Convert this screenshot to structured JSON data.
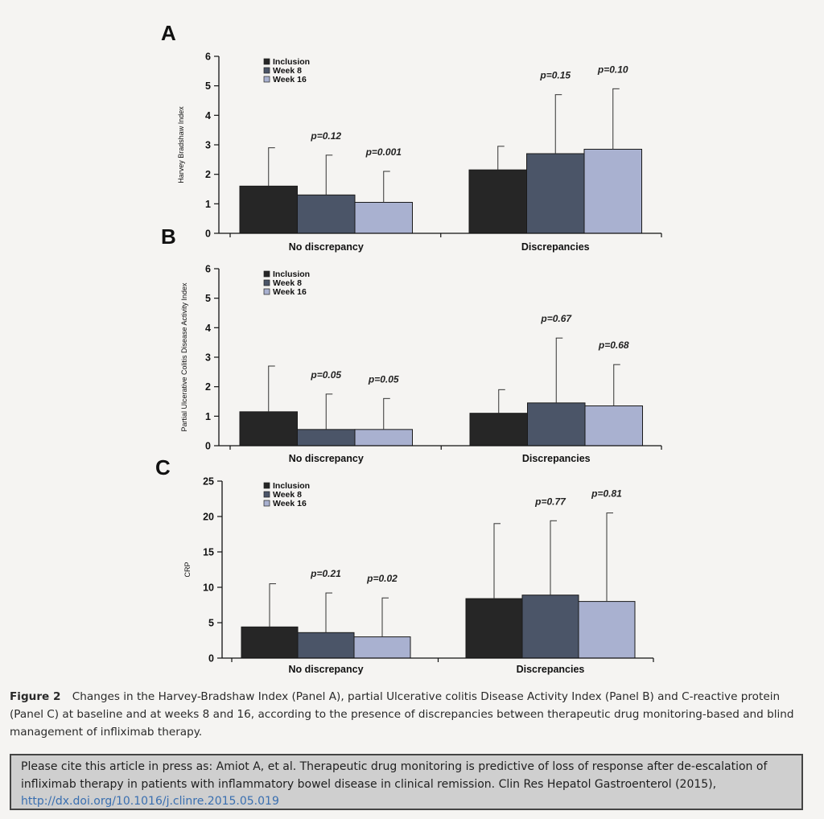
{
  "chart_data": [
    {
      "type": "bar",
      "panel": "A",
      "ylabel": "Harvey Bradshaw Index",
      "ylim": [
        0,
        6
      ],
      "yticks": [
        0,
        1,
        2,
        3,
        4,
        5,
        6
      ],
      "categories": [
        "No discrepancy",
        "Discrepancies"
      ],
      "series": [
        {
          "name": "Inclusion",
          "values": [
            1.6,
            2.15
          ],
          "errors": [
            2.9,
            2.95
          ]
        },
        {
          "name": "Week 8",
          "values": [
            1.3,
            2.7
          ],
          "errors": [
            2.65,
            4.7
          ]
        },
        {
          "name": "Week 16",
          "values": [
            1.05,
            2.85
          ],
          "errors": [
            2.1,
            4.9
          ]
        }
      ],
      "pvalues": [
        [
          "",
          "p=0.12",
          "p=0.001"
        ],
        [
          "",
          "p=0.15",
          "p=0.10"
        ]
      ],
      "legend_position": "top-left"
    },
    {
      "type": "bar",
      "panel": "B",
      "ylabel": "Partial Ulcerative Colitis Disease Activity Index",
      "ylim": [
        0,
        6
      ],
      "yticks": [
        0,
        1,
        2,
        3,
        4,
        5,
        6
      ],
      "categories": [
        "No discrepancy",
        "Discrepancies"
      ],
      "series": [
        {
          "name": "Inclusion",
          "values": [
            1.15,
            1.1
          ],
          "errors": [
            2.7,
            1.9
          ]
        },
        {
          "name": "Week 8",
          "values": [
            0.55,
            1.45
          ],
          "errors": [
            1.75,
            3.65
          ]
        },
        {
          "name": "Week 16",
          "values": [
            0.55,
            1.35
          ],
          "errors": [
            1.6,
            2.75
          ]
        }
      ],
      "pvalues": [
        [
          "",
          "p=0.05",
          "p=0.05"
        ],
        [
          "",
          "p=0.67",
          "p=0.68"
        ]
      ],
      "legend_position": "top-left"
    },
    {
      "type": "bar",
      "panel": "C",
      "ylabel": "CRP",
      "ylim": [
        0,
        25
      ],
      "yticks": [
        0,
        5,
        10,
        15,
        20,
        25
      ],
      "categories": [
        "No discrepancy",
        "Discrepancies"
      ],
      "series": [
        {
          "name": "Inclusion",
          "values": [
            4.4,
            8.4
          ],
          "errors": [
            10.5,
            19
          ]
        },
        {
          "name": "Week 8",
          "values": [
            3.6,
            8.9
          ],
          "errors": [
            9.2,
            19.4
          ]
        },
        {
          "name": "Week 16",
          "values": [
            3.0,
            8.0
          ],
          "errors": [
            8.5,
            20.5
          ]
        }
      ],
      "pvalues": [
        [
          "",
          "p=0.21",
          "p=0.02"
        ],
        [
          "",
          "p=0.77",
          "p=0.81"
        ]
      ],
      "legend_position": "top-left"
    }
  ],
  "colors": {
    "Inclusion": "#262626",
    "Week 8": "#4b5568",
    "Week 16": "#a9b1d0"
  },
  "caption": {
    "lead": "Figure 2",
    "text": "Changes in the Harvey-Bradshaw Index (Panel A), partial Ulcerative colitis Disease Activity Index (Panel B) and C-reactive protein (Panel C) at baseline and at weeks 8 and 16, according to the presence of discrepancies between therapeutic drug monitoring-based and blind management of infliximab therapy."
  },
  "citation": {
    "text": "Please cite this article in press as: Amiot A, et al. Therapeutic drug monitoring is predictive of loss of response after de-escalation of infliximab therapy in patients with inflammatory bowel disease in clinical remission. Clin Res Hepatol Gastroenterol (2015),",
    "link": "http://dx.doi.org/10.1016/j.clinre.2015.05.019"
  }
}
